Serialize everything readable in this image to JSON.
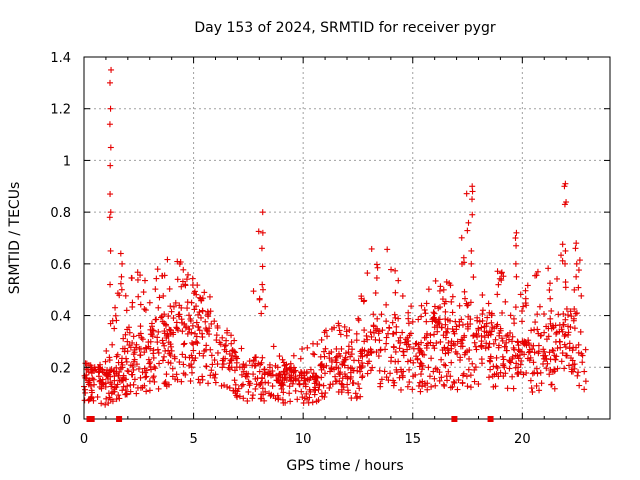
{
  "chart_data": {
    "type": "scatter",
    "title": "Day 153 of 2024, SRMTID for receiver pygr",
    "xlabel": "GPS time / hours",
    "ylabel": "SRMTID / TECUs",
    "xlim": [
      0,
      24
    ],
    "ylim": [
      0,
      1.4
    ],
    "x_ticks": [
      0,
      5,
      10,
      15,
      20
    ],
    "y_ticks": [
      0,
      0.2,
      0.4,
      0.6,
      0.8,
      1,
      1.2,
      1.4
    ],
    "x_tick_labels": [
      "0",
      "5",
      "10",
      "15",
      "20"
    ],
    "y_tick_labels": [
      "0",
      "0.2",
      "0.4",
      "0.6",
      "0.8",
      "1",
      "1.2",
      "1.4"
    ],
    "grid": true,
    "marker": "plus",
    "color": "#e60000",
    "gap_markers_x": [
      0.25,
      0.35,
      1.6,
      16.9,
      18.55
    ],
    "envelope": {
      "hours": [
        0,
        0.5,
        1,
        1.5,
        2,
        2.5,
        3,
        3.5,
        4,
        4.5,
        5,
        5.5,
        6,
        6.5,
        7,
        7.5,
        8,
        8.5,
        9,
        9.5,
        10,
        10.5,
        11,
        11.5,
        12,
        12.5,
        13,
        13.5,
        14,
        14.5,
        15,
        15.5,
        16,
        16.5,
        17,
        17.5,
        18,
        18.5,
        19,
        19.5,
        20,
        20.5,
        21,
        21.5,
        22,
        22.5,
        23
      ],
      "median_tecu": [
        0.15,
        0.14,
        0.12,
        0.16,
        0.2,
        0.22,
        0.24,
        0.26,
        0.28,
        0.3,
        0.32,
        0.3,
        0.25,
        0.2,
        0.16,
        0.15,
        0.16,
        0.14,
        0.13,
        0.14,
        0.13,
        0.12,
        0.16,
        0.18,
        0.17,
        0.16,
        0.22,
        0.26,
        0.28,
        0.24,
        0.2,
        0.22,
        0.26,
        0.25,
        0.24,
        0.26,
        0.28,
        0.27,
        0.24,
        0.22,
        0.2,
        0.22,
        0.24,
        0.26,
        0.3,
        0.28,
        0.22
      ],
      "max_tecu": [
        0.22,
        0.2,
        0.3,
        0.5,
        0.6,
        0.65,
        0.55,
        0.6,
        0.64,
        0.6,
        0.55,
        0.5,
        0.45,
        0.35,
        0.3,
        0.35,
        0.8,
        0.3,
        0.25,
        0.25,
        0.28,
        0.3,
        0.38,
        0.45,
        0.35,
        0.4,
        0.68,
        0.62,
        0.68,
        0.5,
        0.45,
        0.5,
        0.55,
        0.62,
        0.6,
        0.9,
        0.5,
        0.45,
        0.72,
        0.6,
        0.5,
        0.6,
        0.55,
        0.65,
        0.9,
        0.65,
        0.58
      ]
    },
    "spikes": [
      {
        "x": 1.2,
        "y": [
          1.35,
          1.3,
          1.2,
          1.14,
          1.05,
          0.98,
          0.87,
          0.8,
          0.78,
          0.65,
          0.52
        ]
      },
      {
        "x": 1.7,
        "y": [
          0.64,
          0.6,
          0.55,
          0.5
        ]
      },
      {
        "x": 8.15,
        "y": [
          0.8,
          0.72,
          0.66,
          0.59,
          0.52,
          0.5
        ]
      },
      {
        "x": 17.7,
        "y": [
          0.9,
          0.88,
          0.85,
          0.79,
          0.65,
          0.6
        ]
      },
      {
        "x": 19.7,
        "y": [
          0.72,
          0.7,
          0.67,
          0.6,
          0.55
        ]
      },
      {
        "x": 21.95,
        "y": [
          0.91,
          0.9,
          0.83,
          0.65,
          0.6
        ]
      },
      {
        "x": 22.45,
        "y": [
          0.68,
          0.66,
          0.6,
          0.55
        ]
      }
    ]
  }
}
